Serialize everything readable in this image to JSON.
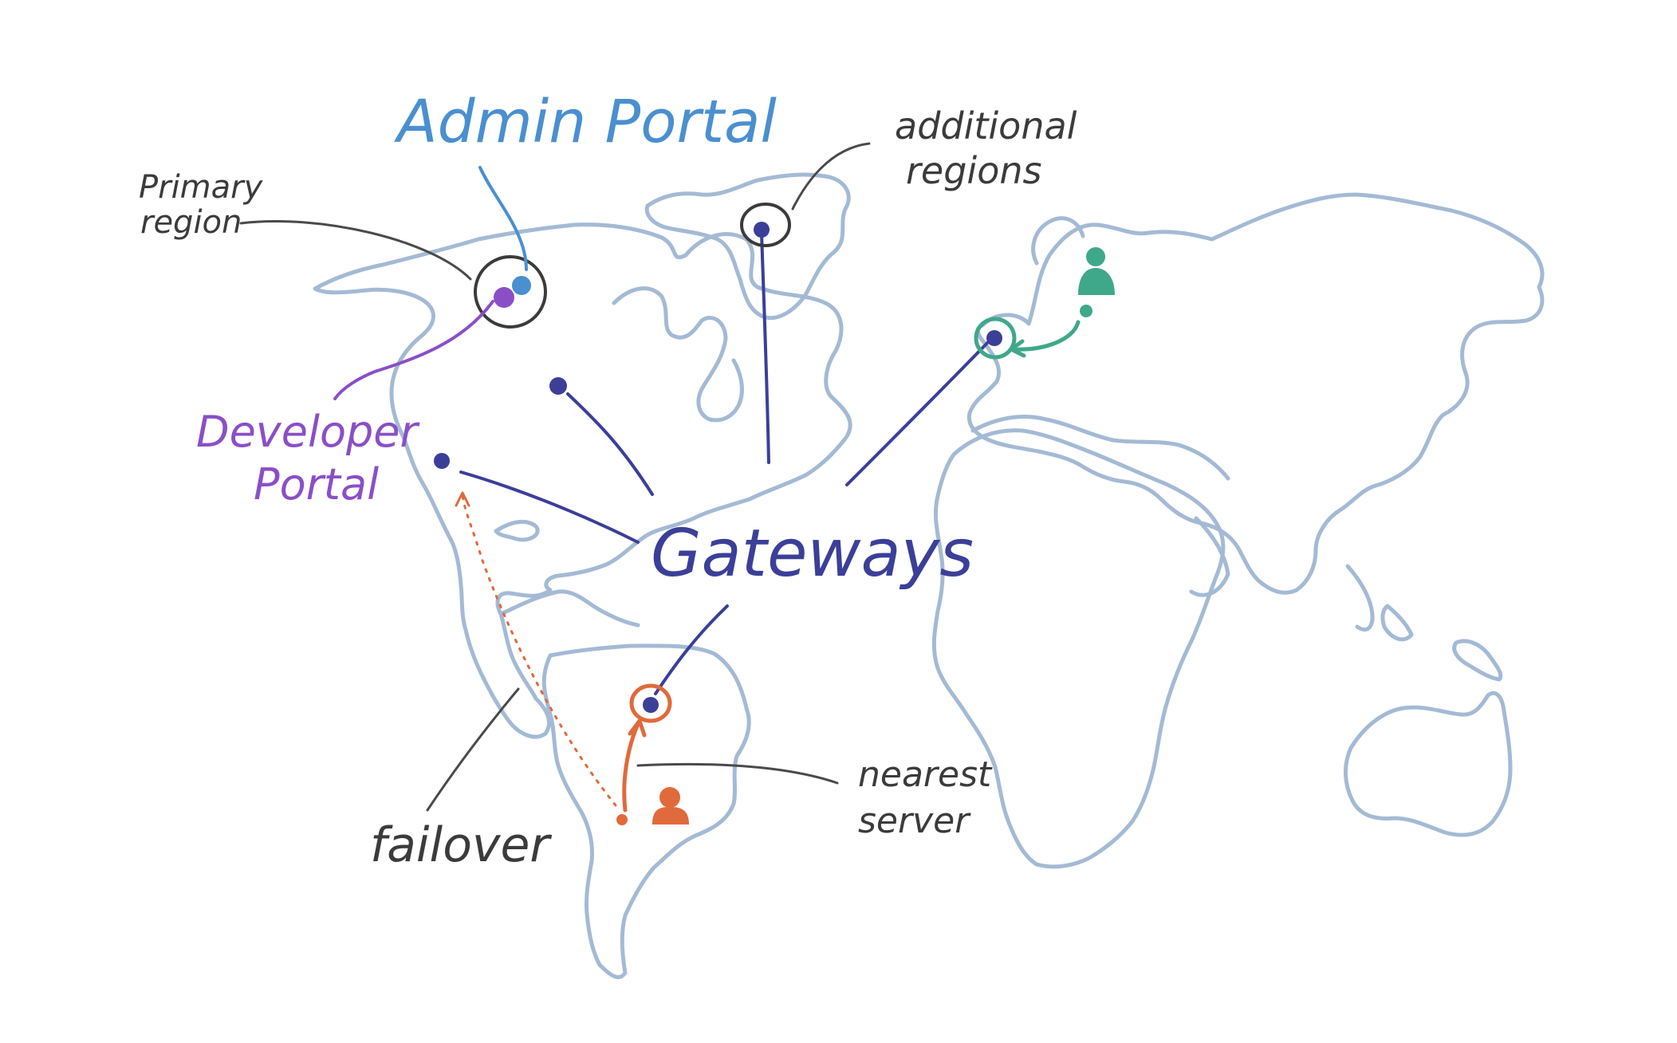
{
  "labels": {
    "admin_portal": "Admin Portal",
    "primary_line1": "Primary",
    "primary_line2": "region",
    "additional_line1": "additional",
    "additional_line2": "regions",
    "developer_line1": "Developer",
    "developer_line2": "Portal",
    "gateways": "Gateways",
    "failover": "failover",
    "nearest_line1": "nearest",
    "nearest_line2": "server"
  },
  "colors": {
    "land": "#a4bad4",
    "gateway": "#3b3f98",
    "admin": "#4a8fd0",
    "developer": "#8a4fc6",
    "annotation": "#4a4a4a",
    "failover": "#e06a3b",
    "user_europe": "#3fa88a"
  },
  "icons": {
    "user_south_america": "person-icon",
    "user_europe": "person-icon"
  }
}
